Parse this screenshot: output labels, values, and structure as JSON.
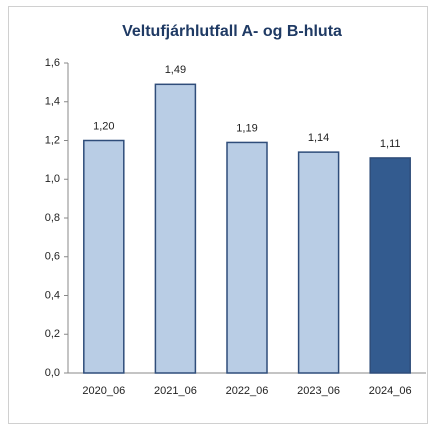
{
  "chart_data": {
    "type": "bar",
    "title": "Veltufjárhlutfall A- og B-hluta",
    "categories": [
      "2020_06",
      "2021_06",
      "2022_06",
      "2023_06",
      "2024_06"
    ],
    "values": [
      1.2,
      1.49,
      1.19,
      1.14,
      1.11
    ],
    "value_labels": [
      "1,20",
      "1,49",
      "1,19",
      "1,14",
      "1,11"
    ],
    "colors": [
      "#b9cde5",
      "#b9cde5",
      "#b9cde5",
      "#b9cde5",
      "#335b8f"
    ],
    "edge_color": "#2f4d7a",
    "ylim": [
      0,
      1.6
    ],
    "yticks": [
      {
        "value": 0,
        "label": "0,0"
      },
      {
        "value": 0.2,
        "label": "0,2"
      },
      {
        "value": 0.4,
        "label": "0,4"
      },
      {
        "value": 0.6,
        "label": "0,6"
      },
      {
        "value": 0.8,
        "label": "0,8"
      },
      {
        "value": 1.0,
        "label": "1,0"
      },
      {
        "value": 1.2,
        "label": "1,2"
      },
      {
        "value": 1.4,
        "label": "1,4"
      },
      {
        "value": 1.6,
        "label": "1,6"
      }
    ],
    "grid": false
  }
}
